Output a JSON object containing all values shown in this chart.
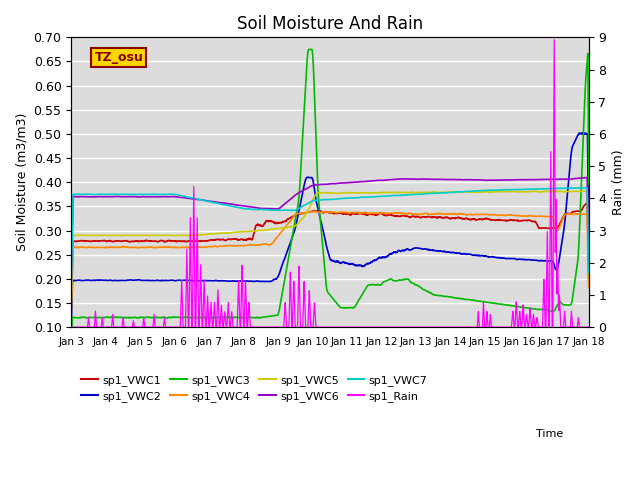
{
  "title": "Soil Moisture And Rain",
  "xlabel": "Time",
  "ylabel_left": "Soil Moisture (m3/m3)",
  "ylabel_right": "Rain (mm)",
  "ylim_left": [
    0.1,
    0.7
  ],
  "ylim_right": [
    0.0,
    9.0
  ],
  "yticks_left": [
    0.1,
    0.15,
    0.2,
    0.25,
    0.3,
    0.35,
    0.4,
    0.45,
    0.5,
    0.55,
    0.6,
    0.65,
    0.7
  ],
  "yticks_right": [
    0.0,
    1.0,
    2.0,
    3.0,
    4.0,
    5.0,
    6.0,
    7.0,
    8.0,
    9.0
  ],
  "tz_label": "TZ_osu",
  "tz_color": "#8B0000",
  "tz_bg": "#FFD700",
  "background_color": "#DCDCDC",
  "fig_bg": "#ffffff",
  "colors": {
    "VWC1": "#CC0000",
    "VWC2": "#0000CC",
    "VWC3": "#00BB00",
    "VWC4": "#FF8800",
    "VWC5": "#CCCC00",
    "VWC6": "#9900CC",
    "VWC7": "#00CCCC",
    "Rain": "#FF00FF"
  },
  "legend": [
    {
      "label": "sp1_VWC1",
      "color": "#CC0000"
    },
    {
      "label": "sp1_VWC2",
      "color": "#0000CC"
    },
    {
      "label": "sp1_VWC3",
      "color": "#00BB00"
    },
    {
      "label": "sp1_VWC4",
      "color": "#FF8800"
    },
    {
      "label": "sp1_VWC5",
      "color": "#CCCC00"
    },
    {
      "label": "sp1_VWC6",
      "color": "#9900CC"
    },
    {
      "label": "sp1_VWC7",
      "color": "#00CCCC"
    },
    {
      "label": "sp1_Rain",
      "color": "#FF00FF"
    }
  ],
  "xtick_labels": [
    "Jan 3",
    "Jan 4",
    "Jan 5",
    "Jan 6",
    "Jan 7",
    "Jan 8",
    "Jan 9",
    "Jan 10",
    "Jan 11",
    "Jan 12",
    "Jan 13",
    "Jan 14",
    "Jan 15",
    "Jan 16",
    "Jan 17",
    "Jan 18"
  ]
}
